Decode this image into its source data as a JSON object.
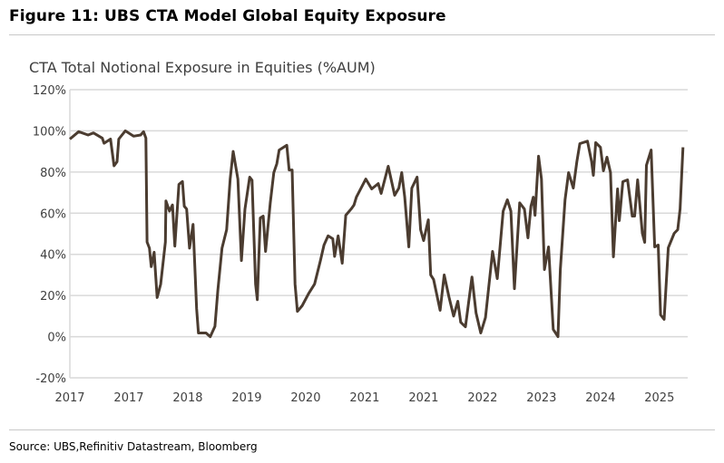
{
  "figure_title": "Figure 11: UBS CTA Model Global Equity Exposure",
  "source": "Source: UBS,Refinitiv Datastream, Bloomberg",
  "chart_data": {
    "type": "line",
    "title": "CTA Total Notional Exposure in Equities  (%AUM)",
    "xlabel": "",
    "ylabel": "",
    "x_unit_note": "x given as position along the printed tick labels (0 = first label)",
    "x_tick_labels": [
      "2017",
      "2017",
      "2018",
      "2019",
      "2020",
      "2021",
      "2021",
      "2022",
      "2023",
      "2024",
      "2025"
    ],
    "xlim": [
      0,
      10.48
    ],
    "y_tick_labels": [
      "-20%",
      "0%",
      "20%",
      "40%",
      "60%",
      "80%",
      "100%",
      "120%"
    ],
    "ylim": [
      -20,
      120
    ],
    "grid": "horizontal",
    "line_color": "#4b3c30",
    "series": [
      {
        "x": [
          0,
          0.15,
          0.31,
          0.4,
          0.55,
          0.58,
          0.69,
          0.75,
          0.8,
          0.83,
          0.94,
          1.08,
          1.2,
          1.25,
          1.29,
          1.31,
          1.35,
          1.38,
          1.43,
          1.48,
          1.54,
          1.62,
          1.63,
          1.69,
          1.74,
          1.78,
          1.85,
          1.91,
          1.94,
          1.98,
          2.03,
          2.09,
          2.15,
          2.18,
          2.31,
          2.38,
          2.46,
          2.51,
          2.58,
          2.66,
          2.72,
          2.77,
          2.85,
          2.91,
          2.97,
          3.05,
          3.09,
          3.15,
          3.18,
          3.23,
          3.28,
          3.32,
          3.4,
          3.46,
          3.51,
          3.55,
          3.68,
          3.72,
          3.77,
          3.82,
          3.86,
          3.94,
          4.05,
          4.15,
          4.25,
          4.31,
          4.38,
          4.46,
          4.49,
          4.55,
          4.62,
          4.68,
          4.77,
          4.82,
          4.86,
          5.02,
          5.12,
          5.23,
          5.28,
          5.4,
          5.51,
          5.58,
          5.63,
          5.68,
          5.75,
          5.8,
          5.89,
          5.95,
          6.0,
          6.08,
          6.12,
          6.17,
          6.28,
          6.35,
          6.43,
          6.51,
          6.58,
          6.63,
          6.71,
          6.82,
          6.89,
          6.97,
          7.05,
          7.17,
          7.25,
          7.35,
          7.42,
          7.48,
          7.54,
          7.63,
          7.71,
          7.77,
          7.82,
          7.86,
          7.89,
          7.95,
          8.0,
          8.05,
          8.12,
          8.2,
          8.28,
          8.32,
          8.4,
          8.46,
          8.54,
          8.6,
          8.65,
          8.78,
          8.85,
          8.88,
          8.92,
          9.0,
          9.05,
          9.11,
          9.17,
          9.22,
          9.29,
          9.32,
          9.38,
          9.46,
          9.54,
          9.58,
          9.63,
          9.71,
          9.75,
          9.78,
          9.86,
          9.92,
          9.98,
          10.02,
          10.08,
          10.15,
          10.25,
          10.31,
          10.35,
          10.4
        ],
        "values": [
          96,
          99.6,
          98,
          99,
          96.5,
          94,
          96,
          83,
          85,
          96,
          100,
          97.4,
          98,
          99.6,
          96.5,
          46,
          43,
          34,
          41,
          19,
          25.5,
          46,
          66,
          61,
          64,
          44,
          74,
          75.4,
          63.4,
          62,
          43,
          54.6,
          13.7,
          1.8,
          1.8,
          0,
          5,
          22.5,
          43,
          52,
          76.6,
          90,
          76.6,
          37,
          62,
          77.5,
          76,
          25.5,
          18,
          57.7,
          58.6,
          41.4,
          65,
          79.7,
          84,
          90.7,
          93,
          81,
          81,
          25.5,
          12.3,
          15,
          21,
          25.5,
          37,
          44.5,
          49,
          47.6,
          39,
          49,
          35.7,
          59,
          62,
          64,
          67.8,
          76.6,
          71.8,
          74.4,
          69.6,
          82.8,
          68.7,
          72.2,
          79.7,
          67.8,
          43.6,
          72.2,
          77.5,
          52,
          46.7,
          56.8,
          30,
          27.8,
          12.8,
          30,
          19.4,
          10,
          17.2,
          7,
          4.8,
          29,
          11.5,
          1.8,
          9.3,
          41.4,
          28.2,
          61,
          66.5,
          61,
          23.3,
          65,
          62,
          48,
          63.4,
          67.8,
          59,
          87.7,
          76.6,
          32.6,
          43.6,
          3.5,
          0,
          32.6,
          66.5,
          79.7,
          72.2,
          85,
          93.8,
          95,
          85,
          78.4,
          94.3,
          92,
          80.6,
          87.2,
          79.7,
          38.8,
          71.8,
          56.4,
          75.3,
          76.2,
          58.6,
          58.6,
          76.2,
          50.2,
          45.8,
          83.3,
          90.7,
          43.6,
          44.5,
          10.6,
          8.4,
          43.2,
          50.2,
          52,
          62,
          92
        ]
      }
    ]
  }
}
